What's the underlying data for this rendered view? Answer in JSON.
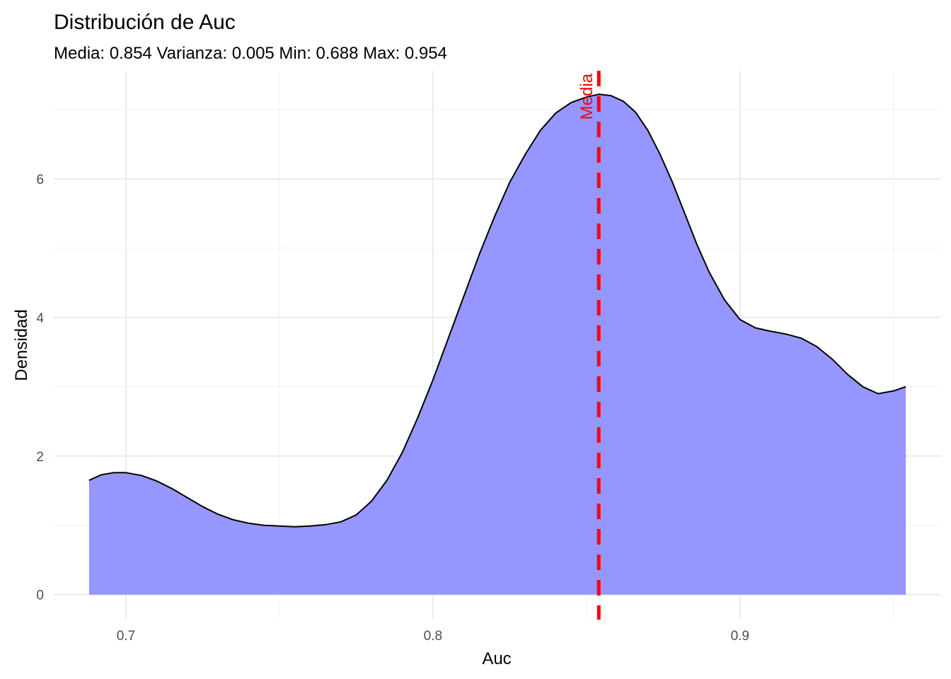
{
  "chart_data": {
    "type": "area",
    "title": "Distribución de Auc",
    "subtitle": "Media: 0.854 Varianza: 0.005 Min: 0.688 Max: 0.954",
    "xlabel": "Auc",
    "ylabel": "Densidad",
    "xlim": [
      0.6765,
      0.9655
    ],
    "ylim": [
      -0.36,
      7.56
    ],
    "x_ticks": [
      0.7,
      0.8,
      0.9
    ],
    "x_tick_labels": [
      "0.7",
      "0.8",
      "0.9"
    ],
    "y_ticks": [
      0,
      2,
      4,
      6
    ],
    "y_tick_labels": [
      "0",
      "2",
      "4",
      "6"
    ],
    "grid": true,
    "legend": "none",
    "fill_color": "#9696ff",
    "line_color": "#000000",
    "series": [
      {
        "x": [
          0.688,
          0.692,
          0.696,
          0.7,
          0.705,
          0.71,
          0.715,
          0.72,
          0.725,
          0.73,
          0.735,
          0.74,
          0.745,
          0.75,
          0.755,
          0.76,
          0.765,
          0.77,
          0.775,
          0.78,
          0.785,
          0.79,
          0.795,
          0.8,
          0.805,
          0.81,
          0.815,
          0.82,
          0.825,
          0.83,
          0.835,
          0.84,
          0.845,
          0.85,
          0.854,
          0.858,
          0.862,
          0.866,
          0.87,
          0.874,
          0.878,
          0.882,
          0.886,
          0.89,
          0.895,
          0.9,
          0.905,
          0.91,
          0.915,
          0.92,
          0.925,
          0.93,
          0.935,
          0.94,
          0.945,
          0.95,
          0.954
        ],
        "y": [
          1.65,
          1.73,
          1.76,
          1.76,
          1.72,
          1.64,
          1.53,
          1.4,
          1.27,
          1.16,
          1.08,
          1.03,
          1.0,
          0.99,
          0.98,
          0.99,
          1.01,
          1.05,
          1.15,
          1.35,
          1.65,
          2.05,
          2.55,
          3.1,
          3.7,
          4.3,
          4.9,
          5.45,
          5.95,
          6.35,
          6.7,
          6.95,
          7.1,
          7.18,
          7.22,
          7.2,
          7.12,
          6.96,
          6.7,
          6.35,
          5.95,
          5.5,
          5.05,
          4.65,
          4.25,
          3.97,
          3.85,
          3.8,
          3.76,
          3.7,
          3.58,
          3.4,
          3.18,
          3.0,
          2.9,
          2.94,
          3.0
        ]
      }
    ],
    "vline": {
      "x": 0.854,
      "label": "Media",
      "color": "#ff0000",
      "style": "dashed"
    }
  }
}
